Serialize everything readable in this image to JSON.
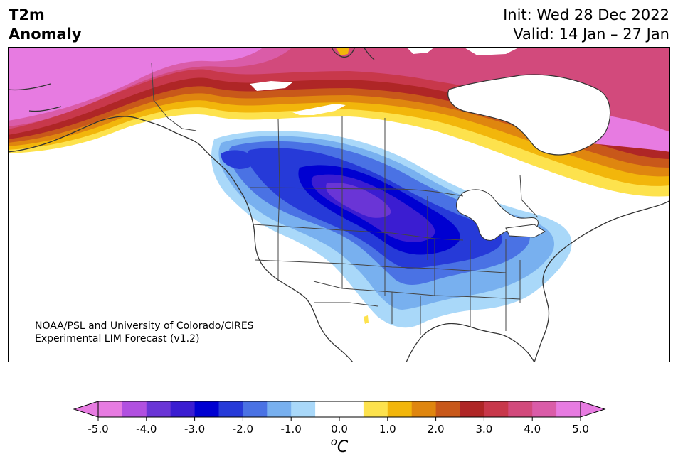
{
  "header": {
    "title_line1": "T2m",
    "title_line2": "Anomaly",
    "init": "Init: Wed 28 Dec 2022",
    "valid": "Valid: 14 Jan – 27 Jan"
  },
  "map": {
    "credit_line1": "NOAA/PSL and University of Colorado/CIRES",
    "credit_line2": "Experimental LIM Forecast (v1.2)",
    "region": "North America",
    "variable": "2m temperature anomaly",
    "anomaly_pattern": [
      {
        "area": "Alaska / Yukon",
        "value": 5.0
      },
      {
        "area": "Nunavut / Northwest Territories",
        "value": 3.5
      },
      {
        "area": "Quebec / Labrador",
        "value": 3.5
      },
      {
        "area": "US Northern Plains",
        "value": -3.5
      },
      {
        "area": "US Midwest",
        "value": -3.0
      },
      {
        "area": "British Columbia interior",
        "value": -2.5
      },
      {
        "area": "US Southeast",
        "value": -1.0
      },
      {
        "area": "US Southwest",
        "value": 0.0
      }
    ]
  },
  "colorbar": {
    "unit_label": "°C",
    "unit_label_parts": {
      "superscript": "o",
      "letter": "C"
    },
    "ticks": [
      "-5.0",
      "-4.0",
      "-3.0",
      "-2.0",
      "-1.0",
      "0.0",
      "1.0",
      "2.0",
      "3.0",
      "4.0",
      "5.0"
    ],
    "colors": [
      "#e77be1",
      "#b150e0",
      "#6a35d6",
      "#3b1dd1",
      "#0000d1",
      "#263ad8",
      "#4a72e4",
      "#78b0ef",
      "#a9d8f9",
      "#ffffff",
      "#ffffff",
      "#fde24d",
      "#f2b60b",
      "#df860f",
      "#c8581a",
      "#af2626",
      "#c8384b",
      "#d24a7c",
      "#da5ca8",
      "#e77be1"
    ],
    "range": [
      -5.0,
      5.0
    ],
    "interval": 0.5
  }
}
